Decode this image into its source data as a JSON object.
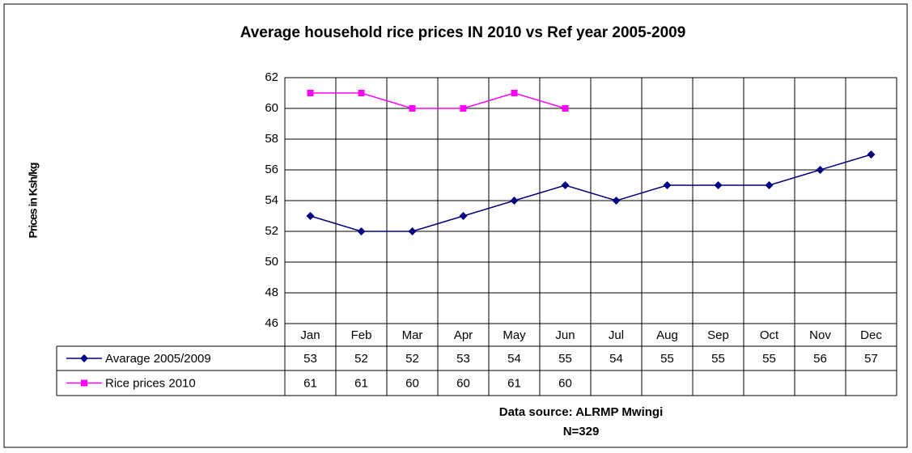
{
  "chart_data": {
    "type": "line",
    "title": "Average household rice prices IN 2010 vs Ref year 2005-2009",
    "y_label": "Prices in Ksh/kg",
    "categories": [
      "Jan",
      "Feb",
      "Mar",
      "Apr",
      "May",
      "Jun",
      "Jul",
      "Aug",
      "Sep",
      "Oct",
      "Nov",
      "Dec"
    ],
    "series": [
      {
        "name": "Avarage 2005/2009",
        "color": "#000080",
        "marker": "diamond",
        "values": [
          53,
          52,
          52,
          53,
          54,
          55,
          54,
          55,
          55,
          55,
          56,
          57
        ]
      },
      {
        "name": "Rice prices 2010",
        "color": "#ff00ff",
        "marker": "square",
        "values": [
          61,
          61,
          60,
          60,
          61,
          60,
          null,
          null,
          null,
          null,
          null,
          null
        ]
      }
    ],
    "ylim": [
      46,
      62
    ],
    "yticks": [
      46,
      48,
      50,
      52,
      54,
      56,
      58,
      60,
      62
    ],
    "grid": true,
    "data_table": true,
    "footnotes": [
      "Data source: ALRMP Mwingi",
      "N=329"
    ]
  }
}
